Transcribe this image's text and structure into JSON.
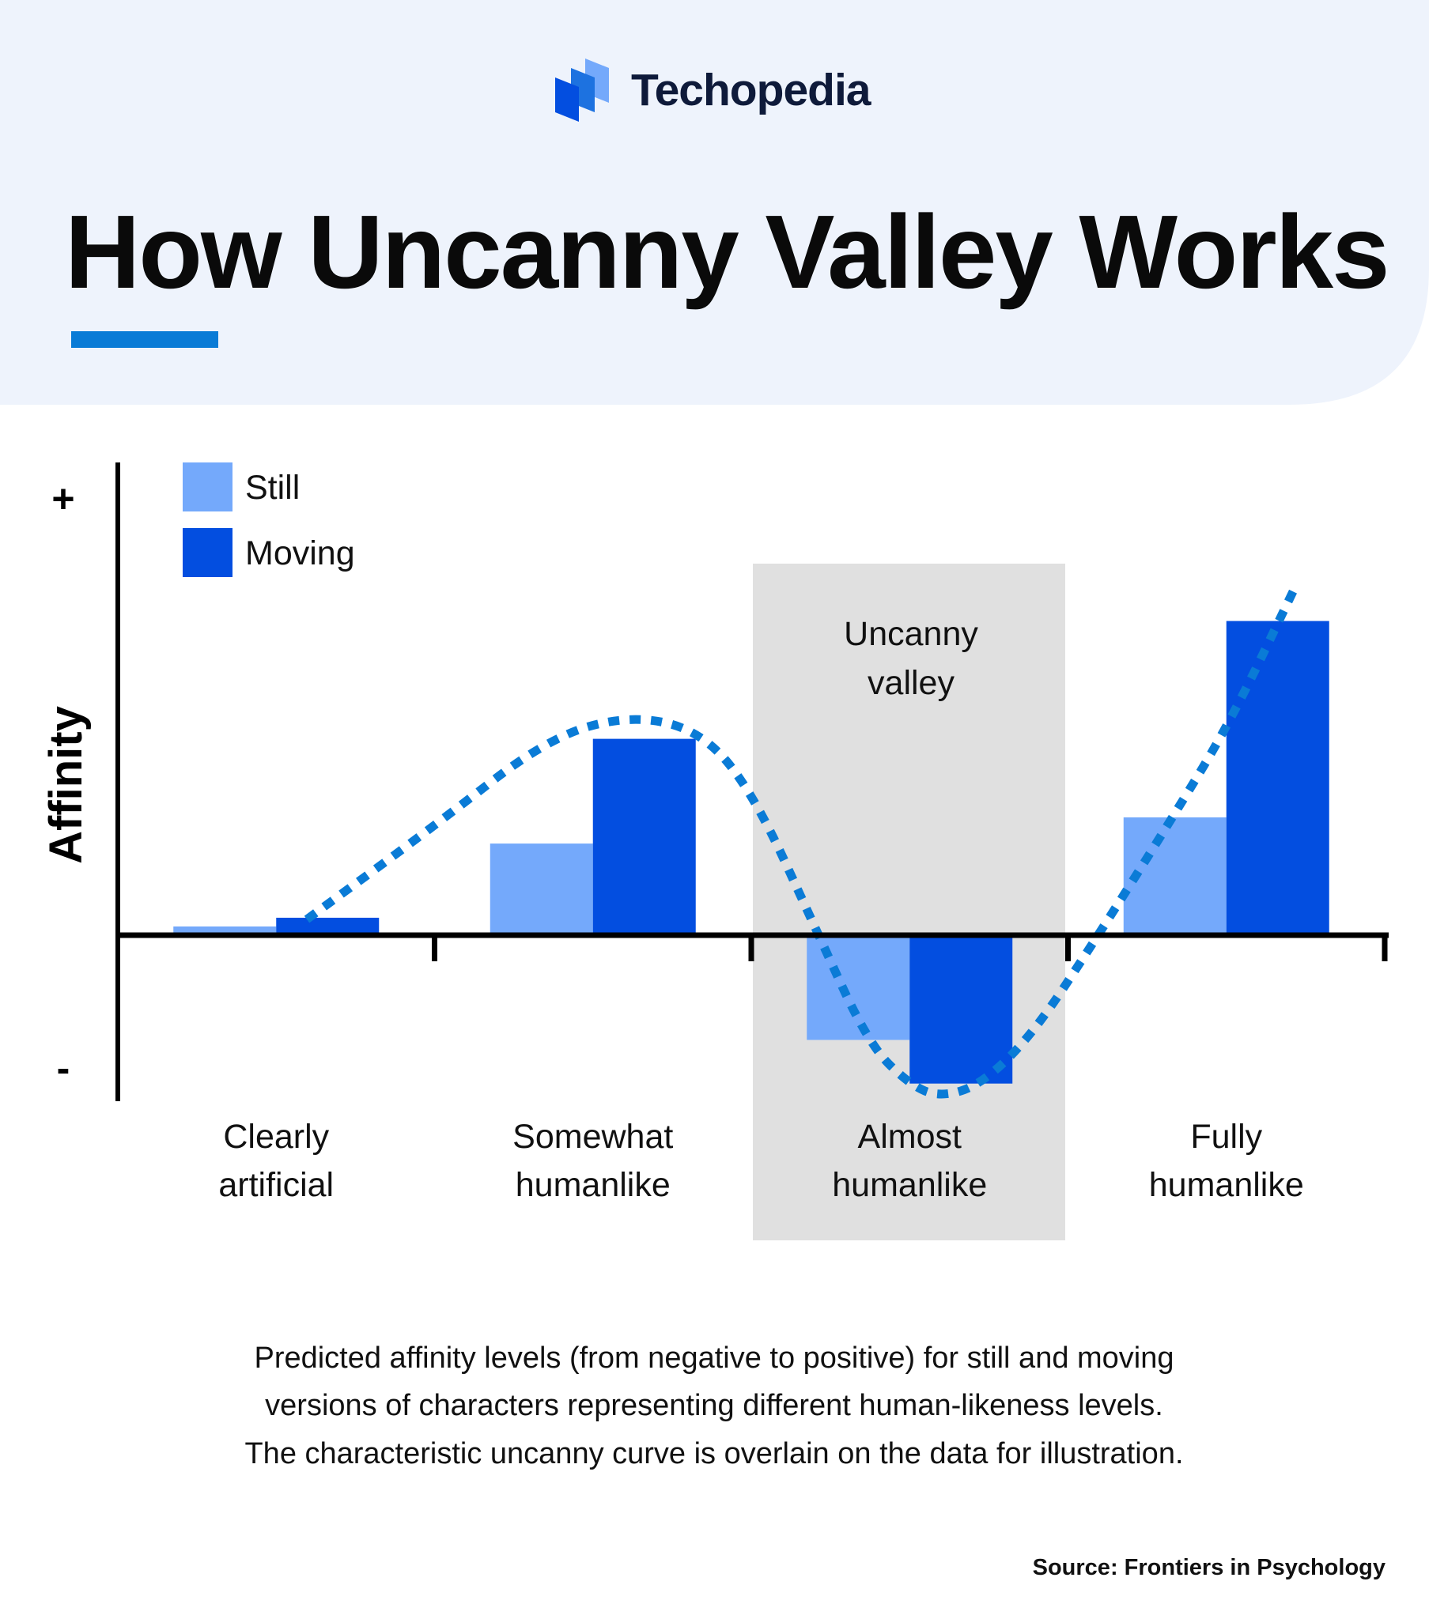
{
  "brand": {
    "name": "Techopedia"
  },
  "title": "How Uncanny Valley Works",
  "colors": {
    "header_bg": "#eef3fc",
    "accent": "#0a7bd6",
    "still": "#74a9fb",
    "moving": "#034ee0",
    "valley_band": "#e0e0e0",
    "curve": "#0a7bd6"
  },
  "chart_data": {
    "type": "bar",
    "ylabel": "Affinity",
    "y_axis_marks": {
      "top": "+",
      "bottom": "-"
    },
    "categories": [
      [
        "Clearly",
        "artificial"
      ],
      [
        "Somewhat",
        "humanlike"
      ],
      [
        "Almost",
        "humanlike"
      ],
      [
        "Fully",
        "humanlike"
      ]
    ],
    "series": [
      {
        "name": "Still",
        "values": [
          2,
          21,
          -24,
          27
        ]
      },
      {
        "name": "Moving",
        "values": [
          4,
          45,
          -34,
          72
        ]
      }
    ],
    "ylim": [
      -38,
      100
    ],
    "units_note": "",
    "legend": "top-left",
    "grid": false,
    "highlight": {
      "label": [
        "Uncanny",
        "valley"
      ],
      "category_index": 2
    },
    "overlay": "dotted uncanny curve"
  },
  "caption": [
    "Predicted affinity levels (from negative to positive) for still and moving",
    "versions of characters representing different human-likeness levels.",
    "The characteristic uncanny curve is overlain on the data for illustration."
  ],
  "source": "Source: Frontiers in Psychology"
}
